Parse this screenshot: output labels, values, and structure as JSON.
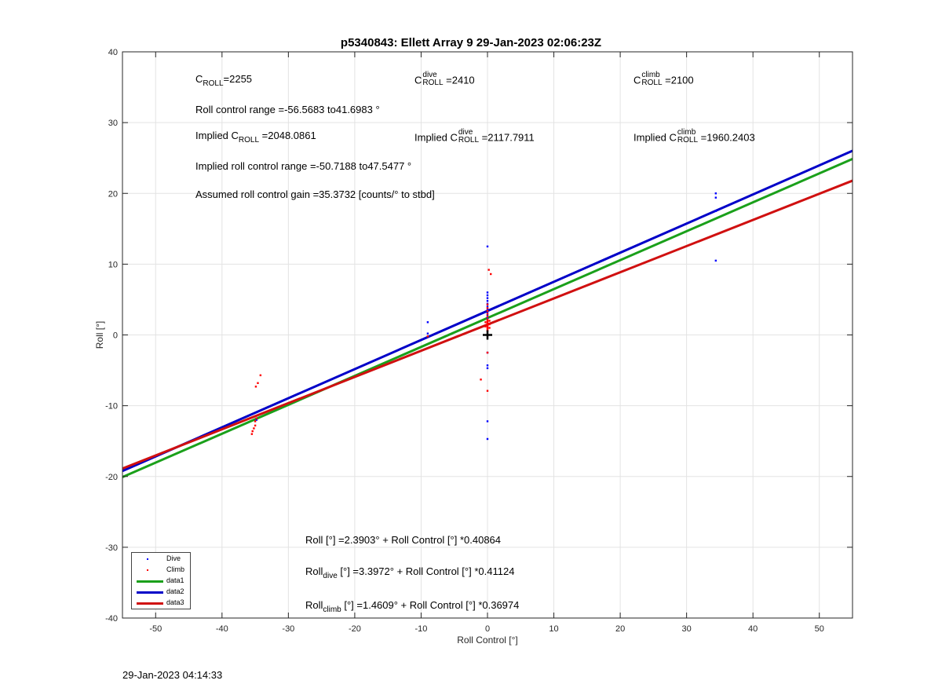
{
  "chart_data": {
    "type": "scatter",
    "title": "p5340843: Ellett Array 9 29-Jan-2023 02:06:23Z",
    "xlabel": "Roll Control [°]",
    "ylabel": "Roll [°]",
    "xlim": [
      -55,
      55
    ],
    "ylim": [
      -40,
      40
    ],
    "xticks": [
      -50,
      -40,
      -30,
      -20,
      -10,
      0,
      10,
      20,
      30,
      40,
      50
    ],
    "yticks": [
      -40,
      -30,
      -20,
      -10,
      0,
      10,
      20,
      30,
      40
    ],
    "grid": true,
    "legend_position": "bottom-left",
    "series": [
      {
        "name": "Dive",
        "kind": "points",
        "color": "#0000ff",
        "points": [
          [
            -9,
            1.8
          ],
          [
            -9,
            0.2
          ],
          [
            0,
            12.5
          ],
          [
            0,
            6.0
          ],
          [
            0,
            5.6
          ],
          [
            0,
            5.2
          ],
          [
            0,
            4.8
          ],
          [
            0,
            4.4
          ],
          [
            0,
            4.0
          ],
          [
            0,
            3.6
          ],
          [
            0,
            3.2
          ],
          [
            0,
            2.8
          ],
          [
            0,
            2.4
          ],
          [
            0,
            -2.5
          ],
          [
            0,
            -4.3
          ],
          [
            0,
            -4.7
          ],
          [
            0,
            -12.2
          ],
          [
            0,
            -14.7
          ],
          [
            34.4,
            20.0
          ],
          [
            34.4,
            19.4
          ],
          [
            34.4,
            17.5
          ],
          [
            34.4,
            10.5
          ],
          [
            -34.8,
            -12.0
          ]
        ]
      },
      {
        "name": "Climb",
        "kind": "points",
        "color": "#ff0000",
        "points": [
          [
            -34.2,
            -5.7
          ],
          [
            -34.6,
            -6.8
          ],
          [
            -34.9,
            -7.3
          ],
          [
            -35.0,
            -12.8
          ],
          [
            -35.2,
            -13.2
          ],
          [
            -35.4,
            -13.6
          ],
          [
            -35.5,
            -14.0
          ],
          [
            -35.0,
            -12.2
          ],
          [
            -34.8,
            -11.8
          ],
          [
            -9,
            -0.2
          ],
          [
            0.2,
            9.2
          ],
          [
            0.5,
            8.6
          ],
          [
            0,
            4.3
          ],
          [
            0,
            3.8
          ],
          [
            0,
            3.4
          ],
          [
            0,
            3.0
          ],
          [
            0,
            2.6
          ],
          [
            0,
            2.2
          ],
          [
            0,
            2.0
          ],
          [
            0,
            1.8
          ],
          [
            0,
            1.6
          ],
          [
            0,
            1.4
          ],
          [
            0,
            1.2
          ],
          [
            0,
            1.0
          ],
          [
            0,
            0.8
          ],
          [
            0,
            0.6
          ],
          [
            0.3,
            2.0
          ],
          [
            0.3,
            1.5
          ],
          [
            0.3,
            1.0
          ],
          [
            -0.3,
            1.8
          ],
          [
            -0.3,
            1.2
          ],
          [
            0,
            -2.5
          ],
          [
            -1,
            -6.3
          ],
          [
            0,
            -7.9
          ]
        ]
      },
      {
        "name": "data1",
        "kind": "line",
        "color": "#1aa01a",
        "intercept": 2.3903,
        "slope": 0.40864
      },
      {
        "name": "data2",
        "kind": "line",
        "color": "#0000c8",
        "intercept": 3.3972,
        "slope": 0.41124
      },
      {
        "name": "data3",
        "kind": "line",
        "color": "#d01010",
        "intercept": 1.4609,
        "slope": 0.36974
      }
    ],
    "markers": [
      {
        "x": 0,
        "y": 0,
        "symbol": "+"
      }
    ]
  },
  "annotations": {
    "c_roll": {
      "base": "C",
      "sub": "ROLL",
      "value": "=2255"
    },
    "c_roll_dive": {
      "base": "C",
      "sup": "dive",
      "sub": "ROLL",
      "value": " =2410"
    },
    "c_roll_climb": {
      "base": "C",
      "sup": "climb",
      "sub": "ROLL",
      "value": " =2100"
    },
    "roll_control_range": "Roll control range =-56.5683 to41.6983 °",
    "implied_c_roll": {
      "prefix": "Implied C",
      "sub": "ROLL",
      "value": " =2048.0861"
    },
    "implied_c_roll_dive": {
      "prefix": "Implied C",
      "sup": "dive",
      "sub": "ROLL",
      "value": " =2117.7911"
    },
    "implied_c_roll_climb": {
      "prefix": "Implied C",
      "sup": "climb",
      "sub": "ROLL",
      "value": " =1960.2403"
    },
    "implied_roll_control_range": "Implied roll control range =-50.7188 to47.5477 °",
    "assumed_gain": "Assumed roll control gain =35.3732 [counts/° to stbd]",
    "fit_all": "Roll [°] =2.3903° + Roll Control [°] *0.40864",
    "fit_dive": {
      "prefix": "Roll",
      "sub": "dive",
      "rest": " [°] =3.3972° + Roll Control [°] *0.41124"
    },
    "fit_climb": {
      "prefix": "Roll",
      "sub": "climb",
      "rest": " [°] =1.4609° + Roll Control [°] *0.36974"
    }
  },
  "legend": [
    "Dive",
    "Climb",
    "data1",
    "data2",
    "data3"
  ],
  "footer_timestamp": "29-Jan-2023 04:14:33"
}
